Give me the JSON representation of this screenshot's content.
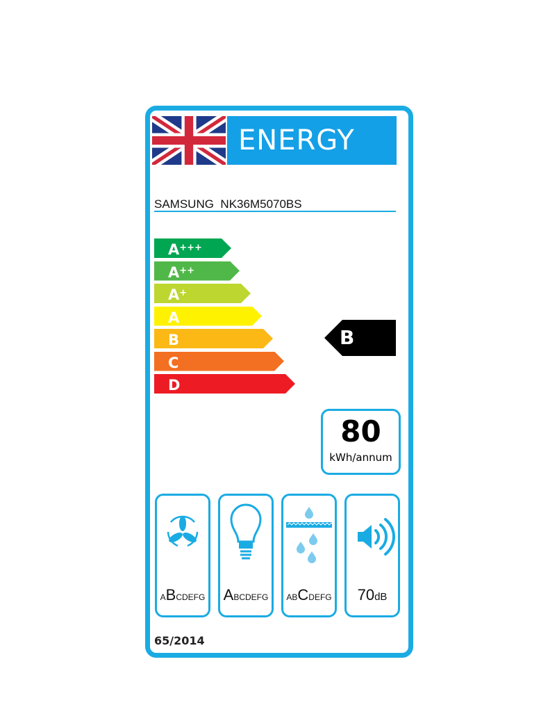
{
  "header": {
    "title": "ENERGY",
    "flag": "union-jack"
  },
  "product": {
    "brand": "SAMSUNG",
    "model": "NK36M5070BS"
  },
  "scale": [
    {
      "letter": "A",
      "plus": "+++",
      "color": "#00a651"
    },
    {
      "letter": "A",
      "plus": "++",
      "color": "#50b848"
    },
    {
      "letter": "A",
      "plus": "+",
      "color": "#bed630"
    },
    {
      "letter": "A",
      "plus": "",
      "color": "#fff200"
    },
    {
      "letter": "B",
      "plus": "",
      "color": "#fcb814"
    },
    {
      "letter": "C",
      "plus": "",
      "color": "#f36f21"
    },
    {
      "letter": "D",
      "plus": "",
      "color": "#ed1c24"
    }
  ],
  "rating": {
    "class": "B"
  },
  "consumption": {
    "value": "80",
    "unit": "kWh/annum"
  },
  "pictograms": [
    {
      "icon": "fan-icon",
      "pre": "A",
      "sel": "B",
      "post": "CDEFG"
    },
    {
      "icon": "light-bulb-icon",
      "pre": "",
      "sel": "A",
      "post": "BCDEFG"
    },
    {
      "icon": "grease-filter-icon",
      "pre": "AB",
      "sel": "C",
      "post": "DEFG"
    },
    {
      "icon": "speaker-icon",
      "value": "70",
      "unit": "dB"
    }
  ],
  "regulation": "65/2014",
  "accent": "#1aabe3"
}
